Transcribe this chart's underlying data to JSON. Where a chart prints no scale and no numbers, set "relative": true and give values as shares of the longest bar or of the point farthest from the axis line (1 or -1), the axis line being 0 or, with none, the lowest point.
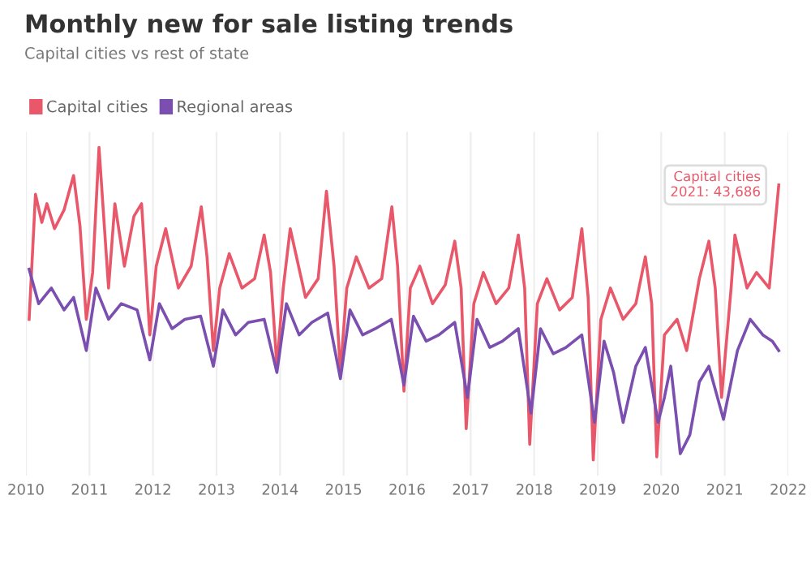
{
  "chart_data": {
    "type": "line",
    "title": "Monthly new for sale listing trends",
    "subtitle": "Capital cities vs rest of state",
    "relative": true,
    "xlim": [
      2010,
      2022
    ],
    "xticks": [
      2010,
      2011,
      2012,
      2013,
      2014,
      2015,
      2016,
      2017,
      2018,
      2019,
      2020,
      2021,
      2022
    ],
    "grid": "x",
    "legend": "top left",
    "tick_labels": "x",
    "marker": "none",
    "line_style": "solid",
    "annotations": [
      {
        "text": "Capital cities\n2021: 43,686",
        "x": 2021.85,
        "y": 0.88
      }
    ],
    "series": [
      {
        "name": "Capital cities",
        "color": "#e8586a",
        "x": [
          2010.05,
          2010.15,
          2010.25,
          2010.33,
          2010.45,
          2010.6,
          2010.75,
          2010.85,
          2010.95,
          2011.05,
          2011.15,
          2011.3,
          2011.4,
          2011.55,
          2011.7,
          2011.82,
          2011.95,
          2012.05,
          2012.2,
          2012.4,
          2012.6,
          2012.76,
          2012.85,
          2012.95,
          2013.05,
          2013.2,
          2013.4,
          2013.6,
          2013.75,
          2013.85,
          2013.95,
          2014.05,
          2014.16,
          2014.4,
          2014.6,
          2014.73,
          2014.85,
          2014.95,
          2015.05,
          2015.2,
          2015.4,
          2015.6,
          2015.76,
          2015.85,
          2015.95,
          2016.05,
          2016.2,
          2016.4,
          2016.6,
          2016.75,
          2016.85,
          2016.93,
          2017.05,
          2017.2,
          2017.4,
          2017.6,
          2017.75,
          2017.85,
          2017.93,
          2018.05,
          2018.2,
          2018.4,
          2018.6,
          2018.75,
          2018.85,
          2018.93,
          2019.05,
          2019.2,
          2019.4,
          2019.6,
          2019.75,
          2019.85,
          2019.93,
          2020.05,
          2020.25,
          2020.4,
          2020.6,
          2020.75,
          2020.85,
          2020.95,
          2021.1,
          2021.16,
          2021.35,
          2021.5,
          2021.7,
          2021.85
        ],
        "values": [
          0.45,
          0.85,
          0.76,
          0.82,
          0.74,
          0.8,
          0.91,
          0.75,
          0.45,
          0.6,
          1.0,
          0.55,
          0.82,
          0.62,
          0.78,
          0.82,
          0.4,
          0.62,
          0.74,
          0.55,
          0.62,
          0.81,
          0.65,
          0.35,
          0.55,
          0.66,
          0.55,
          0.58,
          0.72,
          0.6,
          0.3,
          0.55,
          0.74,
          0.52,
          0.58,
          0.86,
          0.62,
          0.28,
          0.55,
          0.65,
          0.55,
          0.58,
          0.81,
          0.62,
          0.22,
          0.55,
          0.62,
          0.5,
          0.56,
          0.7,
          0.55,
          0.1,
          0.5,
          0.6,
          0.5,
          0.55,
          0.72,
          0.55,
          0.05,
          0.5,
          0.58,
          0.48,
          0.52,
          0.74,
          0.52,
          0.0,
          0.45,
          0.55,
          0.45,
          0.5,
          0.65,
          0.5,
          0.01,
          0.4,
          0.45,
          0.35,
          0.58,
          0.7,
          0.55,
          0.2,
          0.55,
          0.72,
          0.55,
          0.6,
          0.55,
          0.88
        ]
      },
      {
        "name": "Regional areas",
        "color": "#7b4fb0",
        "x": [
          2010.05,
          2010.2,
          2010.4,
          2010.6,
          2010.75,
          2010.95,
          2011.1,
          2011.3,
          2011.5,
          2011.75,
          2011.95,
          2012.1,
          2012.3,
          2012.5,
          2012.75,
          2012.95,
          2013.1,
          2013.3,
          2013.5,
          2013.75,
          2013.95,
          2014.1,
          2014.3,
          2014.5,
          2014.75,
          2014.95,
          2015.1,
          2015.3,
          2015.5,
          2015.75,
          2015.95,
          2016.1,
          2016.3,
          2016.5,
          2016.75,
          2016.95,
          2017.1,
          2017.3,
          2017.5,
          2017.75,
          2017.95,
          2018.1,
          2018.3,
          2018.5,
          2018.75,
          2018.95,
          2019.1,
          2019.25,
          2019.4,
          2019.6,
          2019.75,
          2019.95,
          2020.05,
          2020.15,
          2020.3,
          2020.45,
          2020.6,
          2020.75,
          2020.98,
          2021.2,
          2021.4,
          2021.6,
          2021.75,
          2021.85
        ],
        "values": [
          0.61,
          0.5,
          0.55,
          0.48,
          0.52,
          0.35,
          0.55,
          0.45,
          0.5,
          0.48,
          0.32,
          0.5,
          0.42,
          0.45,
          0.46,
          0.3,
          0.48,
          0.4,
          0.44,
          0.45,
          0.28,
          0.5,
          0.4,
          0.44,
          0.47,
          0.26,
          0.48,
          0.4,
          0.42,
          0.45,
          0.24,
          0.46,
          0.38,
          0.4,
          0.44,
          0.2,
          0.45,
          0.36,
          0.38,
          0.42,
          0.15,
          0.42,
          0.34,
          0.36,
          0.4,
          0.12,
          0.38,
          0.28,
          0.12,
          0.3,
          0.36,
          0.12,
          0.2,
          0.3,
          0.02,
          0.08,
          0.25,
          0.3,
          0.13,
          0.35,
          0.45,
          0.4,
          0.38,
          0.35
        ]
      }
    ]
  }
}
